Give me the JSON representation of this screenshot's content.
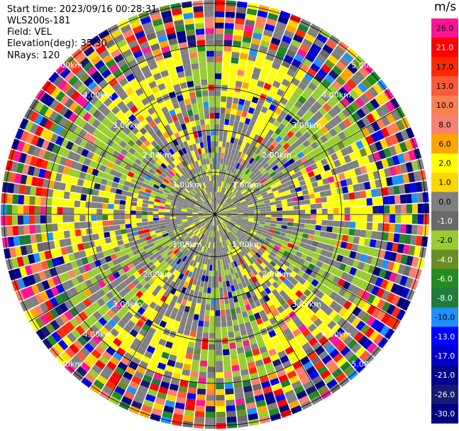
{
  "header": {
    "start_time": "Start time: 2023/09/16 00:28:31",
    "instrument": "WLS200s-181",
    "field": "Field: VEL",
    "elevation": "Elevation(deg): 35.30",
    "nrays": "NRays: 120"
  },
  "colorbar": {
    "unit": "m/s",
    "levels": [
      {
        "label": "26.0",
        "color": "#ff1493"
      },
      {
        "label": "21.0",
        "color": "#ff0000"
      },
      {
        "label": "17.0",
        "color": "#ff2a00"
      },
      {
        "label": "13.0",
        "color": "#ff5a3a"
      },
      {
        "label": "10.0",
        "color": "#ff7f50"
      },
      {
        "label": "8.0",
        "color": "#fa8072"
      },
      {
        "label": "6.0",
        "color": "#ffa500"
      },
      {
        "label": "2.0",
        "color": "#ffff00"
      },
      {
        "label": "1.0",
        "color": "#ffd700"
      },
      {
        "label": "0.0",
        "color": "#808080"
      },
      {
        "label": "-1.0",
        "color": "#696969"
      },
      {
        "label": "-2.0",
        "color": "#9acd32"
      },
      {
        "label": "-4.0",
        "color": "#6b8e23"
      },
      {
        "label": "-6.0",
        "color": "#228b22"
      },
      {
        "label": "-8.0",
        "color": "#1e7b3a"
      },
      {
        "label": "-10.0",
        "color": "#1e90ff"
      },
      {
        "label": "-13.0",
        "color": "#0000ff"
      },
      {
        "label": "-17.0",
        "color": "#0000cd"
      },
      {
        "label": "-21.0",
        "color": "#00008b"
      },
      {
        "label": "-26.0",
        "color": "#191970"
      },
      {
        "label": "-30.0",
        "color": "#000080"
      }
    ]
  },
  "chart_data": {
    "type": "heatmap",
    "projection": "polar PPI",
    "field": "VEL",
    "unit": "m/s",
    "rays": 120,
    "range_rings_km": [
      1.0,
      2.0,
      3.0,
      4.0,
      5.0
    ],
    "ring_labels": [
      "1.00km",
      "2.00km",
      "3.00km",
      "4.00km",
      "5.00km"
    ],
    "spoke_angles_deg": [
      0,
      30,
      60,
      90,
      120,
      150,
      180,
      210,
      240,
      270,
      300,
      330
    ],
    "pattern": {
      "inner_km": 1.2,
      "yellow_band_km": 2.5,
      "green_band_km": 3.1,
      "noise_start_km": 4.0
    }
  }
}
